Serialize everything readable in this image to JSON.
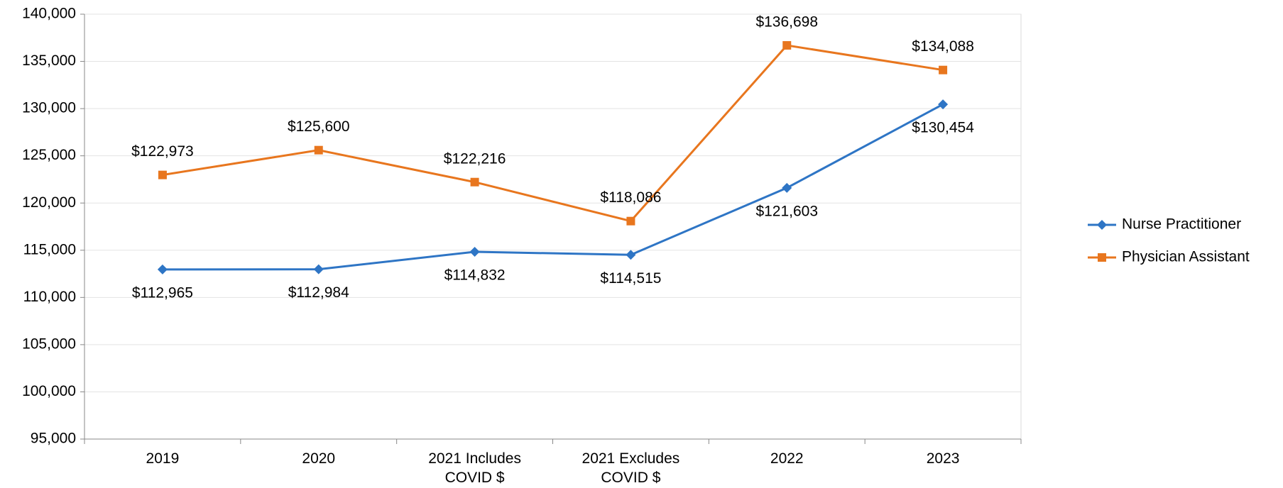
{
  "chart_data": {
    "type": "line",
    "categories": [
      "2019",
      "2020",
      "2021 Includes COVID $",
      "2021 Excludes COVID $",
      "2022",
      "2023"
    ],
    "series": [
      {
        "name": "Nurse Practitioner",
        "color": "#2e75c5",
        "marker": "diamond",
        "values": [
          112965,
          112984,
          114832,
          114515,
          121603,
          130454
        ],
        "value_labels": [
          "$112,965",
          "$112,984",
          "$114,832",
          "$114,515",
          "$121,603",
          "$130,454"
        ]
      },
      {
        "name": "Physician Assistant",
        "color": "#e8761e",
        "marker": "square",
        "values": [
          122973,
          125600,
          122216,
          118086,
          136698,
          134088
        ],
        "value_labels": [
          "$122,973",
          "$125,600",
          "$122,216",
          "$118,086",
          "$136,698",
          "$134,088"
        ]
      }
    ],
    "ylim": [
      95000,
      140000
    ],
    "yticks": [
      {
        "value": 95000,
        "label": "95,000"
      },
      {
        "value": 100000,
        "label": "100,000"
      },
      {
        "value": 105000,
        "label": "105,000"
      },
      {
        "value": 110000,
        "label": "110,000"
      },
      {
        "value": 115000,
        "label": "115,000"
      },
      {
        "value": 120000,
        "label": "120,000"
      },
      {
        "value": 125000,
        "label": "125,000"
      },
      {
        "value": 130000,
        "label": "130,000"
      },
      {
        "value": 135000,
        "label": "135,000"
      },
      {
        "value": 140000,
        "label": "140,000"
      }
    ],
    "grid": true,
    "legend": "right"
  }
}
